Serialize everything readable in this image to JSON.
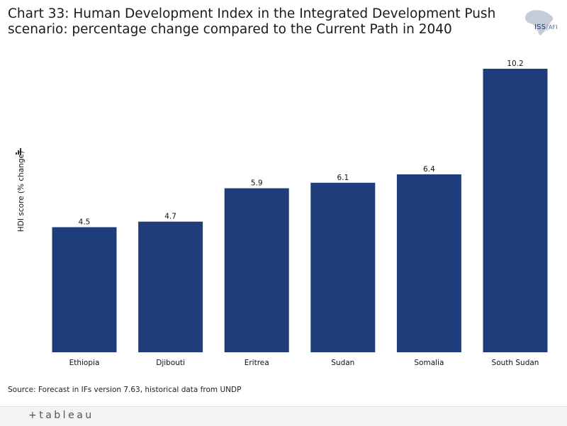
{
  "title": {
    "line1": "Chart 33: Human Development Index in the Integrated Development Push",
    "line2": "scenario: percentage change compared to the Current Path in 2040"
  },
  "logo": {
    "brand": "ISS",
    "sub": "AFI"
  },
  "source": "Source: Forecast in IFs version 7.63, historical data from UNDP",
  "footer": {
    "brand": "+tableau"
  },
  "colors": {
    "bar": "#1f3d7a",
    "text": "#111111"
  },
  "chart_data": {
    "type": "bar",
    "title": "Chart 33: Human Development Index in the Integrated Development Push scenario: percentage change compared to the Current Path in 2040",
    "categories": [
      "Ethiopia",
      "Djibouti",
      "Eritrea",
      "Sudan",
      "Somalia",
      "South Sudan"
    ],
    "values": [
      4.5,
      4.7,
      5.9,
      6.1,
      6.4,
      10.2
    ],
    "value_labels": [
      "4.5",
      "4.7",
      "5.9",
      "6.1",
      "6.4",
      "10.2"
    ],
    "xlabel": "",
    "ylabel": "HDI score (% change)",
    "ylim": [
      0,
      10.2
    ],
    "grid": false
  }
}
